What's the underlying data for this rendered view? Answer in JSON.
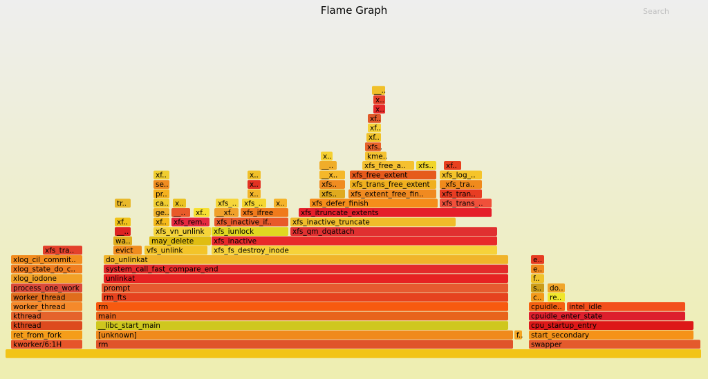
{
  "title": "Flame Graph",
  "search_label": "Search",
  "chart_data": {
    "type": "flame",
    "title": "Flame Graph",
    "total_samples": 1000,
    "frames": [
      {
        "name": "",
        "start": 8,
        "width": 1007,
        "depth": 0,
        "color": "#f2c417"
      },
      {
        "name": "kworker/6:1H",
        "start": 16,
        "width": 104,
        "depth": 1,
        "color": "#e6552a"
      },
      {
        "name": "rm",
        "start": 139,
        "width": 604,
        "depth": 1,
        "color": "#e0542a"
      },
      {
        "name": "swapper",
        "start": 765,
        "width": 249,
        "depth": 1,
        "color": "#e45a2c"
      },
      {
        "name": "ret_from_fork",
        "start": 16,
        "width": 104,
        "depth": 2,
        "color": "#f59d1a"
      },
      {
        "name": "[unknown]",
        "start": 139,
        "width": 604,
        "depth": 2,
        "color": "#f08a1c"
      },
      {
        "name": "f..",
        "start": 744,
        "width": 12,
        "depth": 2,
        "color": "#f5a623"
      },
      {
        "name": "start_secondary",
        "start": 765,
        "width": 239,
        "depth": 2,
        "color": "#f59218"
      },
      {
        "name": "kthread",
        "start": 16,
        "width": 104,
        "depth": 3,
        "color": "#dd4a1e"
      },
      {
        "name": "__libc_start_main",
        "start": 139,
        "width": 597,
        "depth": 3,
        "color": "#cfc71e"
      },
      {
        "name": "cpu_startup_entry",
        "start": 765,
        "width": 239,
        "depth": 3,
        "color": "#dd1818"
      },
      {
        "name": "kthread",
        "start": 16,
        "width": 104,
        "depth": 4,
        "color": "#e5632c"
      },
      {
        "name": "main",
        "start": 139,
        "width": 597,
        "depth": 4,
        "color": "#e8641c"
      },
      {
        "name": "cpuidle_enter_state",
        "start": 765,
        "width": 227,
        "depth": 4,
        "color": "#dd1f2d"
      },
      {
        "name": "worker_thread",
        "start": 16,
        "width": 104,
        "depth": 5,
        "color": "#f5892a"
      },
      {
        "name": "rm",
        "start": 139,
        "width": 597,
        "depth": 5,
        "color": "#f75a10"
      },
      {
        "name": "cpuidle..",
        "start": 765,
        "width": 53,
        "depth": 5,
        "color": "#f56010"
      },
      {
        "name": "intel_idle",
        "start": 820,
        "width": 172,
        "depth": 5,
        "color": "#f34f1c"
      },
      {
        "name": "worker_thread",
        "start": 16,
        "width": 104,
        "depth": 6,
        "color": "#e06d1c"
      },
      {
        "name": "rm_fts",
        "start": 147,
        "width": 589,
        "depth": 6,
        "color": "#e6421e"
      },
      {
        "name": "c..",
        "start": 768,
        "width": 20,
        "depth": 6,
        "color": "#f39a1a"
      },
      {
        "name": "re..",
        "start": 792,
        "width": 26,
        "depth": 6,
        "color": "#f0e62b"
      },
      {
        "name": "process_one_work",
        "start": 16,
        "width": 104,
        "depth": 7,
        "color": "#dc4a3a"
      },
      {
        "name": "prompt",
        "start": 147,
        "width": 589,
        "depth": 7,
        "color": "#e65a2f"
      },
      {
        "name": "s..",
        "start": 768,
        "width": 20,
        "depth": 7,
        "color": "#cc9d1a"
      },
      {
        "name": "do..",
        "start": 792,
        "width": 26,
        "depth": 7,
        "color": "#f0a52a"
      },
      {
        "name": "xlog_iodone",
        "start": 16,
        "width": 104,
        "depth": 8,
        "color": "#f2a126"
      },
      {
        "name": "unlinkat",
        "start": 150,
        "width": 586,
        "depth": 8,
        "color": "#e62222"
      },
      {
        "name": "f..",
        "start": 768,
        "width": 20,
        "depth": 8,
        "color": "#f0c22a"
      },
      {
        "name": "xlog_state_do_c..",
        "start": 16,
        "width": 104,
        "depth": 9,
        "color": "#f07d20"
      },
      {
        "name": "system_call_fast_compare_end",
        "start": 150,
        "width": 586,
        "depth": 9,
        "color": "#e32b2b"
      },
      {
        "name": "e..",
        "start": 768,
        "width": 20,
        "depth": 9,
        "color": "#f28a1e"
      },
      {
        "name": "xlog_cil_commit..",
        "start": 16,
        "width": 104,
        "depth": 10,
        "color": "#f28c1e"
      },
      {
        "name": "do_unlinkat",
        "start": 150,
        "width": 586,
        "depth": 10,
        "color": "#f0b42a"
      },
      {
        "name": "e..",
        "start": 768,
        "width": 20,
        "depth": 10,
        "color": "#e63c22"
      },
      {
        "name": "xfs_tra..",
        "start": 62,
        "width": 58,
        "depth": 11,
        "color": "#e3402b"
      },
      {
        "name": "evict",
        "start": 164,
        "width": 42,
        "depth": 11,
        "color": "#f08c1e"
      },
      {
        "name": "vfs_unlink",
        "start": 209,
        "width": 92,
        "depth": 11,
        "color": "#f3c42a"
      },
      {
        "name": "xfs_fs_destroy_inode",
        "start": 306,
        "width": 414,
        "depth": 11,
        "color": "#f6d23a"
      },
      {
        "name": "wa..",
        "start": 164,
        "width": 28,
        "depth": 12,
        "color": "#e0ad1e"
      },
      {
        "name": "may_delete",
        "start": 216,
        "width": 90,
        "depth": 12,
        "color": "#e0bd12"
      },
      {
        "name": "xfs_inactive",
        "start": 306,
        "width": 414,
        "depth": 12,
        "color": "#e82a2a"
      },
      {
        "name": "__..",
        "start": 166,
        "width": 24,
        "depth": 13,
        "color": "#dd2222"
      },
      {
        "name": "xfs_vn_unlink",
        "start": 222,
        "width": 84,
        "depth": 13,
        "color": "#f5d43a"
      },
      {
        "name": "xfs_iunlock",
        "start": 306,
        "width": 112,
        "depth": 13,
        "color": "#e0d821"
      },
      {
        "name": "xfs_qm_dqattach",
        "start": 420,
        "width": 300,
        "depth": 13,
        "color": "#e03030"
      },
      {
        "name": "xf..",
        "start": 166,
        "width": 24,
        "depth": 14,
        "color": "#f0c21a"
      },
      {
        "name": "xf..",
        "start": 222,
        "width": 24,
        "depth": 14,
        "color": "#f5b91a"
      },
      {
        "name": "xfs_rem..",
        "start": 248,
        "width": 56,
        "depth": 14,
        "color": "#e52840"
      },
      {
        "name": "xfs_inactive_if..",
        "start": 310,
        "width": 108,
        "depth": 14,
        "color": "#e85a2a"
      },
      {
        "name": "xfs_inactive_truncate",
        "start": 420,
        "width": 240,
        "depth": 14,
        "color": "#f0bc2a"
      },
      {
        "name": "ge..",
        "start": 222,
        "width": 24,
        "depth": 15,
        "color": "#f0b22a"
      },
      {
        "name": "__..",
        "start": 248,
        "width": 28,
        "depth": 15,
        "color": "#e85a2a"
      },
      {
        "name": "xf..",
        "start": 280,
        "width": 24,
        "depth": 15,
        "color": "#f7e030"
      },
      {
        "name": "__xf..",
        "start": 310,
        "width": 36,
        "depth": 15,
        "color": "#f0a02a"
      },
      {
        "name": "xfs_ifree",
        "start": 348,
        "width": 70,
        "depth": 15,
        "color": "#f07a1c"
      },
      {
        "name": "xfs_itruncate_extents",
        "start": 432,
        "width": 280,
        "depth": 15,
        "color": "#e51e2a"
      },
      {
        "name": "tr..",
        "start": 166,
        "width": 24,
        "depth": 16,
        "color": "#e8b82a"
      },
      {
        "name": "ca..",
        "start": 222,
        "width": 24,
        "depth": 16,
        "color": "#f0cd30"
      },
      {
        "name": "x..",
        "start": 250,
        "width": 20,
        "depth": 16,
        "color": "#eac222"
      },
      {
        "name": "xfs_..",
        "start": 312,
        "width": 34,
        "depth": 16,
        "color": "#f6d63a"
      },
      {
        "name": "xfs_..",
        "start": 350,
        "width": 36,
        "depth": 16,
        "color": "#f5d630"
      },
      {
        "name": "x..",
        "start": 396,
        "width": 20,
        "depth": 16,
        "color": "#f5b32a"
      },
      {
        "name": "xfs_defer_finish",
        "start": 448,
        "width": 186,
        "depth": 16,
        "color": "#f58d1a"
      },
      {
        "name": "xfs_trans_..",
        "start": 636,
        "width": 76,
        "depth": 16,
        "color": "#f0503a"
      },
      {
        "name": "pr..",
        "start": 222,
        "width": 24,
        "depth": 17,
        "color": "#f5b11e"
      },
      {
        "name": "x..",
        "start": 358,
        "width": 20,
        "depth": 17,
        "color": "#f2b52a"
      },
      {
        "name": "xfs..",
        "start": 462,
        "width": 38,
        "depth": 17,
        "color": "#e0aa1e"
      },
      {
        "name": "xfs_extent_free_fin..",
        "start": 504,
        "width": 128,
        "depth": 17,
        "color": "#f08a20"
      },
      {
        "name": "xfs_tran..",
        "start": 636,
        "width": 62,
        "depth": 17,
        "color": "#e83c22"
      },
      {
        "name": "se..",
        "start": 222,
        "width": 24,
        "depth": 18,
        "color": "#f08c20"
      },
      {
        "name": "x..",
        "start": 358,
        "width": 20,
        "depth": 18,
        "color": "#e23222"
      },
      {
        "name": "xfs..",
        "start": 462,
        "width": 38,
        "depth": 18,
        "color": "#f08c20"
      },
      {
        "name": "xfs_trans_free_extent",
        "start": 506,
        "width": 126,
        "depth": 18,
        "color": "#f0b01e"
      },
      {
        "name": "_xfs_tra..",
        "start": 636,
        "width": 62,
        "depth": 18,
        "color": "#f08a1c"
      },
      {
        "name": "xf..",
        "start": 222,
        "width": 24,
        "depth": 19,
        "color": "#f0cd30"
      },
      {
        "name": "x..",
        "start": 358,
        "width": 20,
        "depth": 19,
        "color": "#f0c02a"
      },
      {
        "name": "__x..",
        "start": 462,
        "width": 38,
        "depth": 19,
        "color": "#f5b82a"
      },
      {
        "name": "xfs_free_extent",
        "start": 506,
        "width": 126,
        "depth": 19,
        "color": "#e65a1c"
      },
      {
        "name": "xfs_log_..",
        "start": 636,
        "width": 62,
        "depth": 19,
        "color": "#f5c42a"
      },
      {
        "name": "__..",
        "start": 462,
        "width": 26,
        "depth": 20,
        "color": "#f0ad2a"
      },
      {
        "name": "xfs_free_a..",
        "start": 524,
        "width": 76,
        "depth": 20,
        "color": "#f5c030"
      },
      {
        "name": "xfs..",
        "start": 602,
        "width": 30,
        "depth": 20,
        "color": "#f0d52a"
      },
      {
        "name": "xf..",
        "start": 642,
        "width": 26,
        "depth": 20,
        "color": "#e8401e"
      },
      {
        "name": "x..",
        "start": 464,
        "width": 18,
        "depth": 21,
        "color": "#f5d030"
      },
      {
        "name": "kme..",
        "start": 528,
        "width": 32,
        "depth": 21,
        "color": "#f5c230"
      },
      {
        "name": "xfs..",
        "start": 528,
        "width": 24,
        "depth": 22,
        "color": "#e8622a"
      },
      {
        "name": "xf..",
        "start": 530,
        "width": 22,
        "depth": 23,
        "color": "#f0c22a"
      },
      {
        "name": "xf..",
        "start": 532,
        "width": 20,
        "depth": 24,
        "color": "#f5d23a"
      },
      {
        "name": "xf..",
        "start": 532,
        "width": 20,
        "depth": 25,
        "color": "#e05a2a"
      },
      {
        "name": "x..",
        "start": 540,
        "width": 18,
        "depth": 26,
        "color": "#e62a2a"
      },
      {
        "name": "x..",
        "start": 540,
        "width": 18,
        "depth": 27,
        "color": "#e6402a"
      },
      {
        "name": "__..",
        "start": 538,
        "width": 20,
        "depth": 28,
        "color": "#f0c02a"
      }
    ]
  }
}
